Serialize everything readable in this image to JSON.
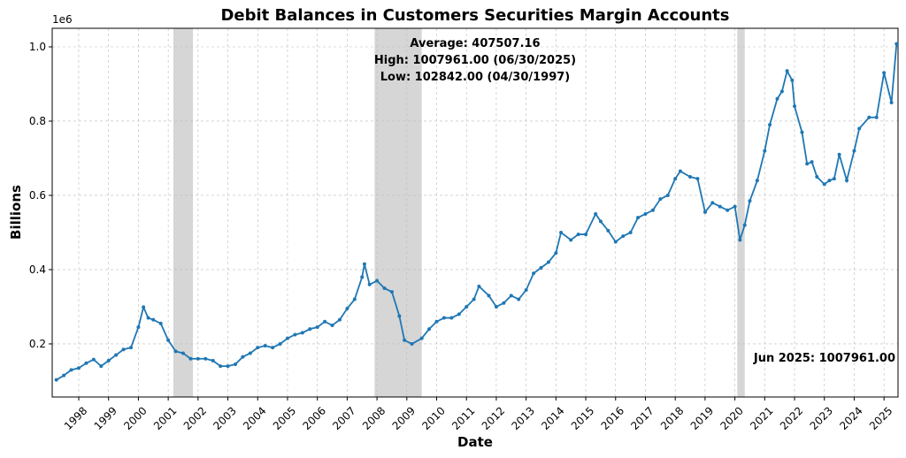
{
  "chart_data": {
    "type": "line",
    "title": "Debit Balances in Customers Securities Margin Accounts",
    "xlabel": "Date",
    "ylabel": "Billions",
    "y_offset_label": "1e6",
    "stats": [
      "Average: 407507.16",
      "High: 1007961.00 (06/30/2025)",
      "Low: 102842.00 (04/30/1997)"
    ],
    "annotation": "Jun 2025: 1007961.00",
    "color": "#1f77b4",
    "grid": true,
    "shade_color": "#d6d6d6",
    "shaded": [
      [
        2001.17,
        2001.83
      ],
      [
        2007.92,
        2009.5
      ],
      [
        2020.08,
        2020.33
      ]
    ],
    "xlim": [
      1997.11,
      2025.47
    ],
    "ylim": [
      0.057,
      1.05
    ],
    "xticks": [
      1998,
      1999,
      2000,
      2001,
      2002,
      2003,
      2004,
      2005,
      2006,
      2007,
      2008,
      2009,
      2010,
      2011,
      2012,
      2013,
      2014,
      2015,
      2016,
      2017,
      2018,
      2019,
      2020,
      2021,
      2022,
      2023,
      2024,
      2025
    ],
    "yticks": [
      0.2,
      0.4,
      0.6,
      0.8,
      {
        "value": 1,
        "label": "1.0"
      }
    ],
    "x": [
      1997.25,
      1997.5,
      1997.75,
      1998,
      1998.25,
      1998.5,
      1998.75,
      1999,
      1999.25,
      1999.5,
      1999.75,
      2000,
      2000.17,
      2000.33,
      2000.5,
      2000.75,
      2001,
      2001.25,
      2001.5,
      2001.75,
      2002,
      2002.25,
      2002.5,
      2002.75,
      2003,
      2003.25,
      2003.5,
      2003.75,
      2004,
      2004.25,
      2004.5,
      2004.75,
      2005,
      2005.25,
      2005.5,
      2005.75,
      2006,
      2006.25,
      2006.5,
      2006.75,
      2007,
      2007.25,
      2007.5,
      2007.58,
      2007.75,
      2008,
      2008.25,
      2008.5,
      2008.75,
      2008.92,
      2009.17,
      2009.5,
      2009.75,
      2010,
      2010.25,
      2010.5,
      2010.75,
      2011,
      2011.25,
      2011.42,
      2011.75,
      2012,
      2012.25,
      2012.5,
      2012.75,
      2013,
      2013.25,
      2013.5,
      2013.75,
      2014,
      2014.17,
      2014.5,
      2014.75,
      2015,
      2015.33,
      2015.5,
      2015.75,
      2016,
      2016.25,
      2016.5,
      2016.75,
      2017,
      2017.25,
      2017.5,
      2017.75,
      2018,
      2018.17,
      2018.5,
      2018.75,
      2019,
      2019.25,
      2019.5,
      2019.75,
      2020,
      2020.17,
      2020.33,
      2020.5,
      2020.75,
      2021,
      2021.17,
      2021.42,
      2021.58,
      2021.75,
      2021.92,
      2022,
      2022.25,
      2022.42,
      2022.58,
      2022.75,
      2023,
      2023.17,
      2023.33,
      2023.5,
      2023.75,
      2024,
      2024.17,
      2024.5,
      2024.75,
      2025,
      2025.25,
      2025.42
    ],
    "values": [
      0.103,
      0.115,
      0.13,
      0.135,
      0.148,
      0.158,
      0.14,
      0.155,
      0.17,
      0.185,
      0.19,
      0.245,
      0.299,
      0.27,
      0.265,
      0.255,
      0.21,
      0.18,
      0.175,
      0.16,
      0.16,
      0.16,
      0.155,
      0.14,
      0.14,
      0.145,
      0.165,
      0.175,
      0.19,
      0.195,
      0.19,
      0.2,
      0.215,
      0.225,
      0.23,
      0.24,
      0.245,
      0.26,
      0.25,
      0.265,
      0.295,
      0.32,
      0.38,
      0.415,
      0.36,
      0.37,
      0.35,
      0.34,
      0.275,
      0.21,
      0.2,
      0.215,
      0.24,
      0.26,
      0.27,
      0.27,
      0.28,
      0.3,
      0.32,
      0.355,
      0.33,
      0.3,
      0.31,
      0.33,
      0.32,
      0.345,
      0.39,
      0.405,
      0.42,
      0.445,
      0.5,
      0.48,
      0.495,
      0.495,
      0.55,
      0.53,
      0.505,
      0.475,
      0.49,
      0.5,
      0.54,
      0.55,
      0.56,
      0.59,
      0.6,
      0.645,
      0.665,
      0.65,
      0.645,
      0.555,
      0.58,
      0.57,
      0.56,
      0.57,
      0.48,
      0.52,
      0.585,
      0.64,
      0.72,
      0.79,
      0.86,
      0.88,
      0.935,
      0.91,
      0.84,
      0.77,
      0.685,
      0.69,
      0.65,
      0.63,
      0.64,
      0.645,
      0.71,
      0.64,
      0.72,
      0.78,
      0.81,
      0.81,
      0.93,
      0.85,
      1.008
    ]
  }
}
